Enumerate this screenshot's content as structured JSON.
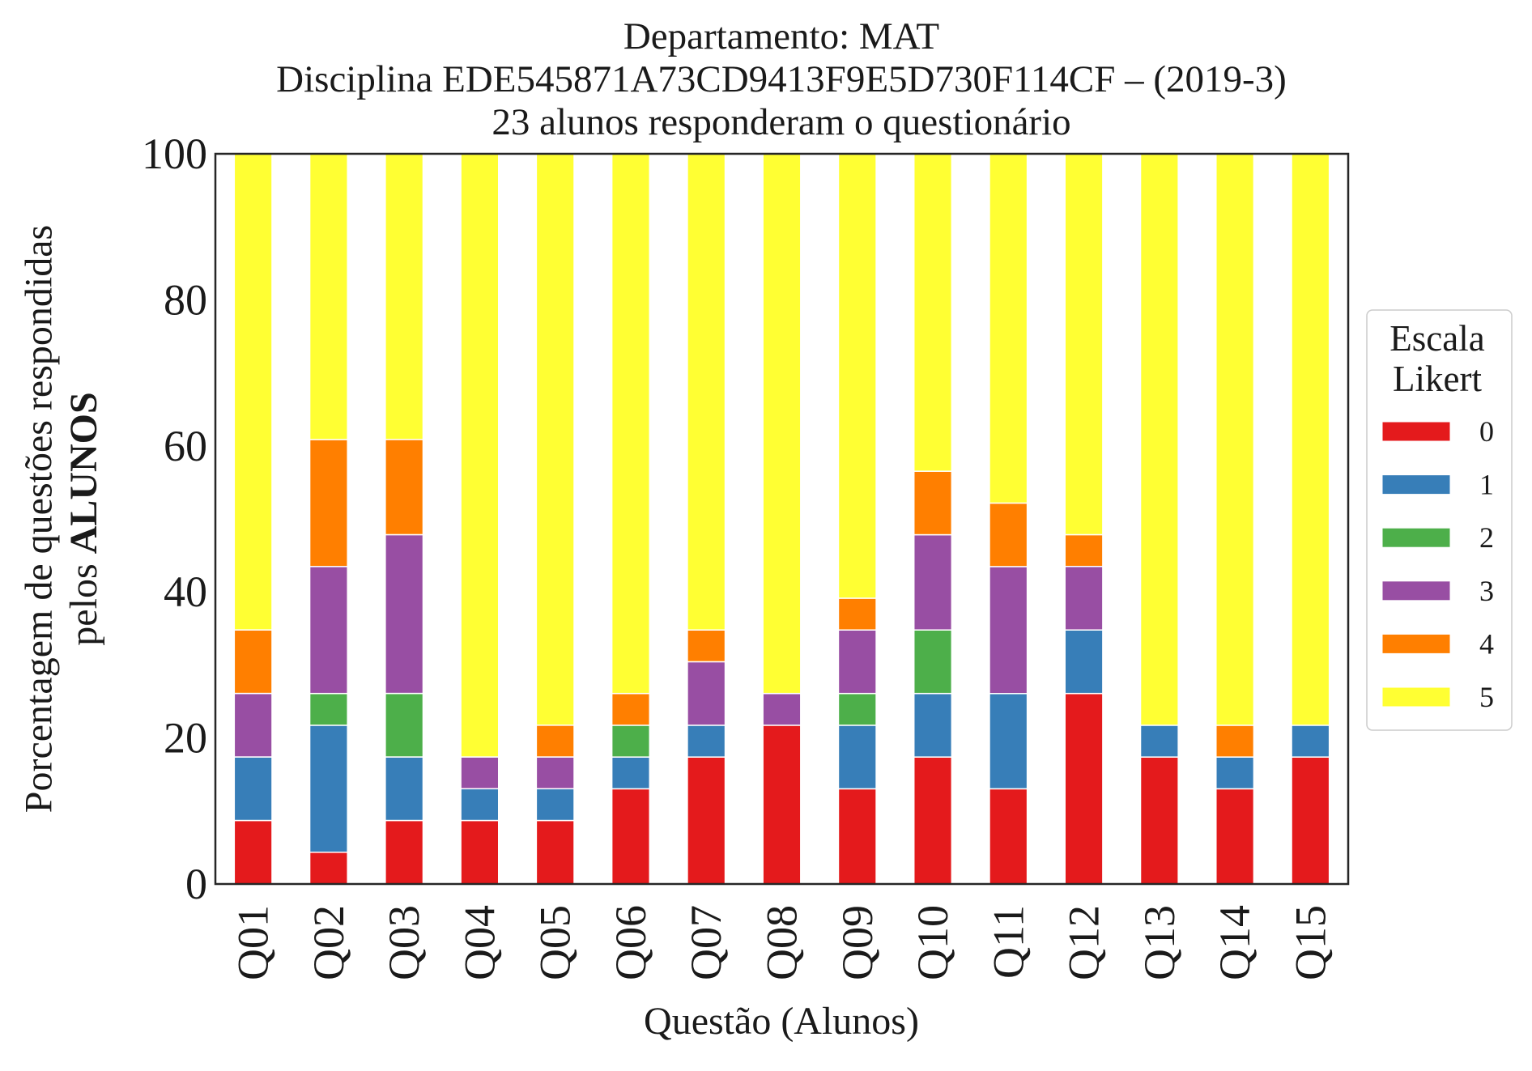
{
  "chart_data": {
    "type": "bar",
    "stacked": true,
    "title": [
      "Departamento: MAT",
      "Disciplina EDE545871A73CD9413F9E5D730F114CF – (2019-3)",
      "23 alunos responderam o questionário"
    ],
    "xlabel": "Questão (Alunos)",
    "ylabel": {
      "line1": "Porcentagem de questões respondidas",
      "line2": "pelos",
      "line2_bold": "ALUNOS"
    },
    "ylim": [
      0,
      100
    ],
    "yticks": [
      0,
      20,
      40,
      60,
      80,
      100
    ],
    "grid": false,
    "categories": [
      "Q01",
      "Q02",
      "Q03",
      "Q04",
      "Q05",
      "Q06",
      "Q07",
      "Q08",
      "Q09",
      "Q10",
      "Q11",
      "Q12",
      "Q13",
      "Q14",
      "Q15"
    ],
    "series": [
      {
        "name": "0",
        "color": "#e41a1c",
        "values": [
          8.7,
          4.35,
          8.7,
          8.7,
          8.7,
          13.04,
          17.39,
          21.74,
          13.04,
          17.39,
          13.04,
          26.09,
          17.39,
          13.04,
          17.39
        ]
      },
      {
        "name": "1",
        "color": "#377eb8",
        "values": [
          8.7,
          17.39,
          8.7,
          4.35,
          4.35,
          4.35,
          4.35,
          0,
          8.7,
          8.7,
          13.04,
          8.7,
          4.35,
          4.35,
          4.35
        ]
      },
      {
        "name": "2",
        "color": "#4daf4a",
        "values": [
          0,
          4.35,
          8.7,
          0,
          0,
          4.35,
          0,
          0,
          4.35,
          8.7,
          0,
          0,
          0,
          0,
          0
        ]
      },
      {
        "name": "3",
        "color": "#984ea3",
        "values": [
          8.7,
          17.39,
          21.74,
          4.35,
          4.35,
          0,
          8.7,
          4.35,
          8.7,
          13.04,
          17.39,
          8.7,
          0,
          0,
          0
        ]
      },
      {
        "name": "4",
        "color": "#ff7f00",
        "values": [
          8.7,
          17.39,
          13.04,
          0,
          4.35,
          4.35,
          4.35,
          0,
          4.35,
          8.7,
          8.7,
          4.35,
          0,
          4.35,
          0
        ]
      },
      {
        "name": "5",
        "color": "#ffff33",
        "values": [
          65.22,
          39.13,
          39.13,
          82.61,
          78.26,
          73.91,
          65.22,
          73.91,
          60.87,
          43.48,
          47.83,
          52.17,
          78.26,
          78.26,
          78.26
        ]
      }
    ],
    "legend": {
      "title": [
        "Escala",
        "Likert"
      ],
      "placement": "right"
    }
  }
}
